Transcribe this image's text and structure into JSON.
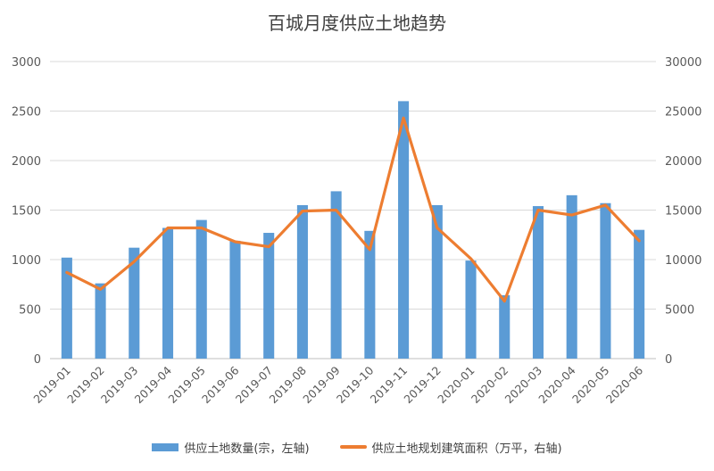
{
  "chart_data": {
    "type": "bar",
    "title": "百城月度供应土地趋势",
    "categories": [
      "2019-01",
      "2019-02",
      "2019-03",
      "2019-04",
      "2019-05",
      "2019-06",
      "2019-07",
      "2019-08",
      "2019-09",
      "2019-10",
      "2019-11",
      "2019-12",
      "2020-01",
      "2020-02",
      "2020-03",
      "2020-04",
      "2020-05",
      "2020-06"
    ],
    "y_left": {
      "lim": [
        0,
        3000
      ],
      "ticks": [
        "0",
        "500",
        "1000",
        "1500",
        "2000",
        "2500",
        "3000"
      ]
    },
    "y_right": {
      "lim": [
        0,
        30000
      ],
      "ticks": [
        "0",
        "5000",
        "10000",
        "15000",
        "20000",
        "25000",
        "30000"
      ]
    },
    "grid": true,
    "legend_position": "bottom",
    "series": [
      {
        "name": "供应土地数量(宗，左轴)",
        "type": "bar",
        "axis": "left",
        "color": "#5b9bd5",
        "values": [
          1020,
          760,
          1120,
          1320,
          1400,
          1190,
          1270,
          1550,
          1690,
          1290,
          2600,
          1550,
          990,
          640,
          1540,
          1650,
          1570,
          1300
        ]
      },
      {
        "name": "供应土地规划建筑面积（万平，右轴)",
        "type": "line",
        "axis": "right",
        "color": "#ed7d31",
        "values": [
          8700,
          7000,
          9800,
          13200,
          13200,
          11800,
          11300,
          14900,
          15000,
          11000,
          24300,
          13200,
          10100,
          5800,
          15000,
          14500,
          15500,
          11900
        ]
      }
    ]
  }
}
